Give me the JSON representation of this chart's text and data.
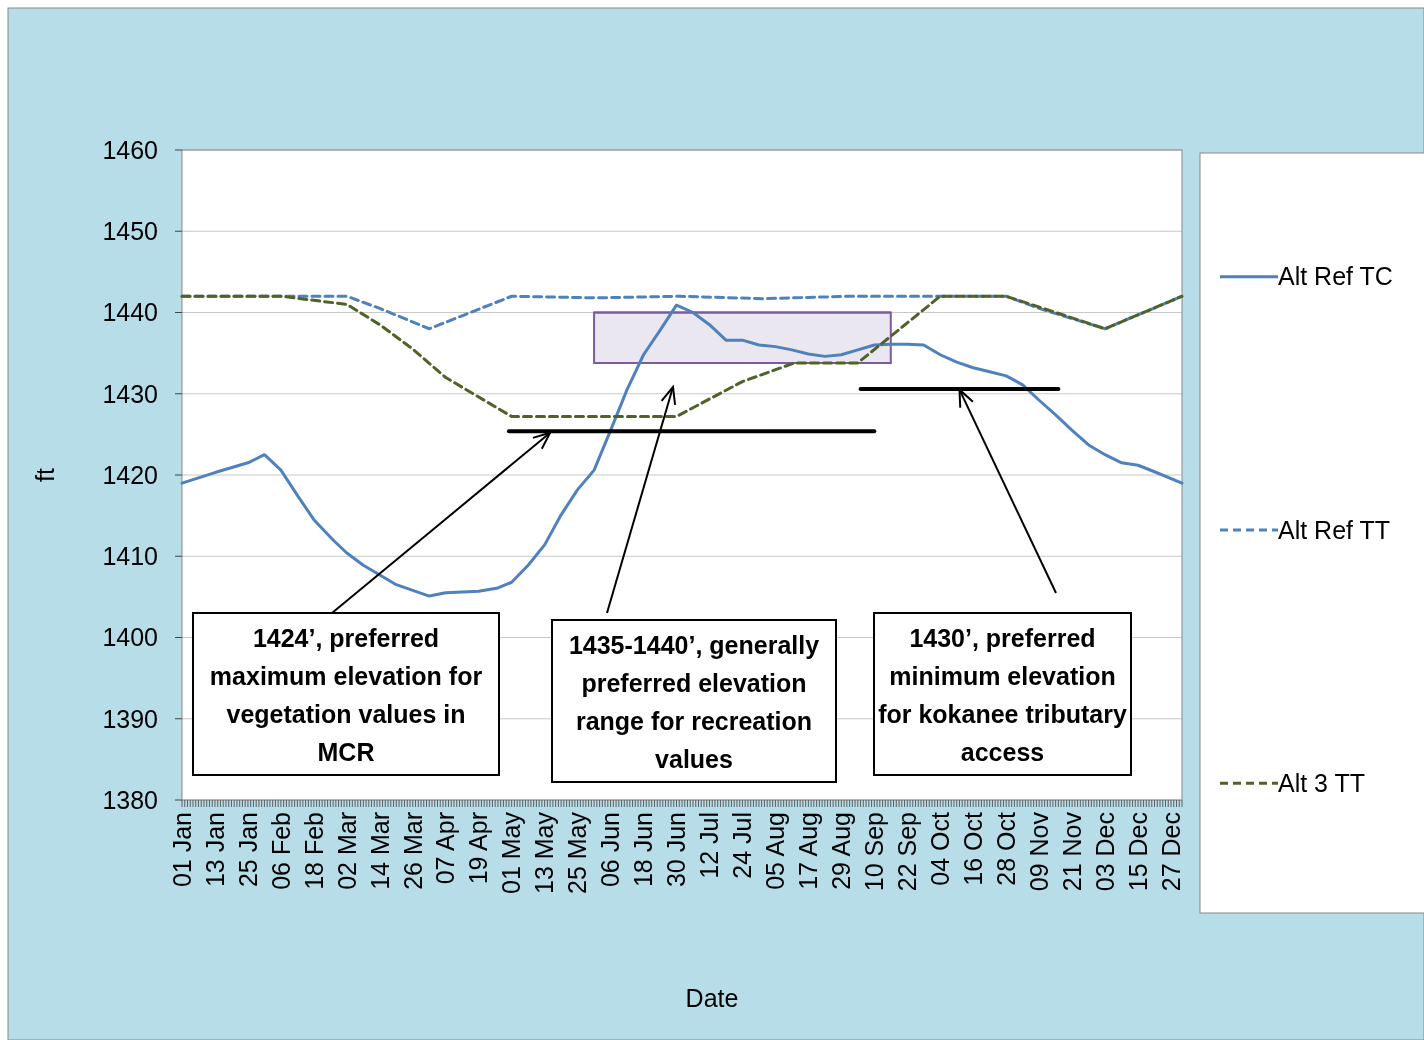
{
  "chart_data": {
    "type": "line",
    "xlabel": "Date",
    "ylabel": "ft",
    "xlim": [
      "--01-01",
      "--12-31"
    ],
    "xticks": [
      {
        "value": "--01-01",
        "label": "01 Jan"
      },
      {
        "value": "--01-13",
        "label": "13 Jan"
      },
      {
        "value": "--01-25",
        "label": "25 Jan"
      },
      {
        "value": "--02-06",
        "label": "06 Feb"
      },
      {
        "value": "--02-18",
        "label": "18 Feb"
      },
      {
        "value": "--03-02",
        "label": "02 Mar"
      },
      {
        "value": "--03-14",
        "label": "14 Mar"
      },
      {
        "value": "--03-26",
        "label": "26 Mar"
      },
      {
        "value": "--04-07",
        "label": "07 Apr"
      },
      {
        "value": "--04-19",
        "label": "19 Apr"
      },
      {
        "value": "--05-01",
        "label": "01 May"
      },
      {
        "value": "--05-13",
        "label": "13 May"
      },
      {
        "value": "--05-25",
        "label": "25 May"
      },
      {
        "value": "--06-06",
        "label": "06 Jun"
      },
      {
        "value": "--06-18",
        "label": "18 Jun"
      },
      {
        "value": "--06-30",
        "label": "30 Jun"
      },
      {
        "value": "--07-12",
        "label": "12 Jul"
      },
      {
        "value": "--07-24",
        "label": "24 Jul"
      },
      {
        "value": "--08-05",
        "label": "05 Aug"
      },
      {
        "value": "--08-17",
        "label": "17 Aug"
      },
      {
        "value": "--08-29",
        "label": "29 Aug"
      },
      {
        "value": "--09-10",
        "label": "10 Sep"
      },
      {
        "value": "--09-22",
        "label": "22 Sep"
      },
      {
        "value": "--10-04",
        "label": "04 Oct"
      },
      {
        "value": "--10-16",
        "label": "16 Oct"
      },
      {
        "value": "--10-28",
        "label": "28 Oct"
      },
      {
        "value": "--11-09",
        "label": "09 Nov"
      },
      {
        "value": "--11-21",
        "label": "21 Nov"
      },
      {
        "value": "--12-03",
        "label": "03 Dec"
      },
      {
        "value": "--12-15",
        "label": "15 Dec"
      },
      {
        "value": "--12-27",
        "label": "27 Dec"
      }
    ],
    "ylim": [
      1380,
      1460
    ],
    "yticks": [
      1380,
      1390,
      1400,
      1410,
      1420,
      1430,
      1440,
      1450,
      1460
    ],
    "grid": "y",
    "legend": "right",
    "series": [
      {
        "type": "line",
        "color": "#7a5c9a",
        "x": [
          "--05-31",
          "--09-16"
        ],
        "values": [
          1440,
          1440
        ],
        "lower": [
          1433.8,
          1433.8
        ],
        "upper": [
          1440,
          1440
        ]
      },
      {
        "name": "Alt Ref TC",
        "color": "#4f81bd",
        "line_style": "solid",
        "x": [
          "--01-01",
          "--01-13",
          "--01-25",
          "--01-31",
          "--02-06",
          "--02-12",
          "--02-18",
          "--02-25",
          "--03-02",
          "--03-08",
          "--03-14",
          "--03-20",
          "--03-26",
          "--04-01",
          "--04-07",
          "--04-19",
          "--04-26",
          "--05-01",
          "--05-07",
          "--05-13",
          "--05-19",
          "--05-25",
          "--05-31",
          "--06-06",
          "--06-12",
          "--06-18",
          "--06-24",
          "--06-30",
          "--07-06",
          "--07-12",
          "--07-18",
          "--07-24",
          "--07-30",
          "--08-05",
          "--08-11",
          "--08-17",
          "--08-23",
          "--08-29",
          "--09-04",
          "--09-10",
          "--09-16",
          "--09-22",
          "--09-28",
          "--10-04",
          "--10-10",
          "--10-16",
          "--10-22",
          "--10-28",
          "--11-03",
          "--11-09",
          "--11-15",
          "--11-21",
          "--11-27",
          "--12-03",
          "--12-09",
          "--12-15",
          "--12-21",
          "--12-31"
        ],
        "values": [
          1419,
          1420.3,
          1421.5,
          1422.5,
          1420.6,
          1417.5,
          1414.5,
          1412,
          1410.4,
          1408.9,
          1407.7,
          1406.5,
          1405.8,
          1405.1,
          1405.5,
          1405.7,
          1406.1,
          1406.8,
          1408.9,
          1411.4,
          1415.1,
          1418.2,
          1420.6,
          1425.5,
          1430.5,
          1434.8,
          1437.8,
          1440.9,
          1440,
          1438.5,
          1436.6,
          1436.6,
          1436,
          1435.8,
          1435.4,
          1434.9,
          1434.6,
          1434.8,
          1435.4,
          1436,
          1436.1,
          1436.1,
          1436,
          1434.8,
          1433.9,
          1433.2,
          1432.7,
          1432.2,
          1431.1,
          1429.2,
          1427.4,
          1425.5,
          1423.7,
          1422.5,
          1421.5,
          1421.2,
          1420.4,
          1419
        ]
      },
      {
        "name": "Alt Ref TT",
        "color": "#4f81bd",
        "line_style": "dashed",
        "x": [
          "--01-01",
          "--02-06",
          "--03-02",
          "--03-14",
          "--04-01",
          "--05-01",
          "--06-01",
          "--07-01",
          "--08-01",
          "--09-01",
          "--10-04",
          "--10-28",
          "--11-09",
          "--12-03",
          "--12-31"
        ],
        "values": [
          1442,
          1442,
          1442,
          1440.5,
          1438,
          1442,
          1441.8,
          1442,
          1441.7,
          1442,
          1442,
          1442,
          1440.5,
          1438,
          1442
        ]
      },
      {
        "name": "Alt 3 TT",
        "color": "#4f6228",
        "line_style": "dashed",
        "x": [
          "--01-01",
          "--02-06",
          "--03-02",
          "--03-14",
          "--03-26",
          "--04-07",
          "--05-01",
          "--06-30",
          "--07-24",
          "--08-12",
          "--09-04",
          "--10-04",
          "--10-28",
          "--12-03",
          "--12-31"
        ],
        "values": [
          1442,
          1442,
          1441,
          1438.5,
          1435.5,
          1432,
          1427.2,
          1427.2,
          1431.5,
          1433.8,
          1433.8,
          1442,
          1442,
          1438,
          1442
        ]
      },
      {
        "color": "#000000",
        "line_style": "solid",
        "x": [
          "--04-30",
          "--09-10"
        ],
        "values": [
          1425.4,
          1425.4
        ]
      },
      {
        "color": "#000000",
        "line_style": "solid",
        "x": [
          "--09-05",
          "--11-16"
        ],
        "values": [
          1430.6,
          1430.6
        ]
      }
    ],
    "annotations": [
      {
        "text": "1424’, preferred maximum elevation for vegetation values in MCR",
        "x": "--05-15",
        "y": 1425.2
      },
      "1435-1440’, generally preferred elevation range for recreation values",
      {
        "text": "1430’, preferred minimum elevation for kokanee tributary access",
        "x": "--10-11",
        "y": 1430.5
      }
    ]
  }
}
